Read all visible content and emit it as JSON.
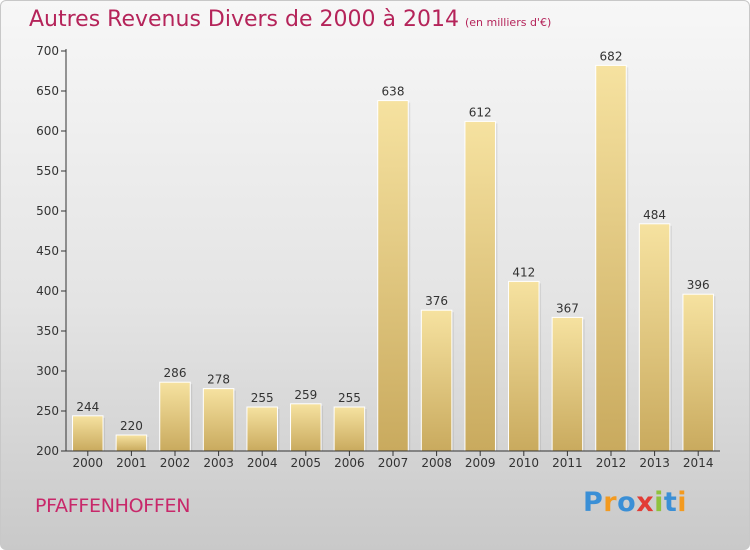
{
  "title": "Autres Revenus Divers de 2000 à 2014",
  "subtitle": "(en milliers d'€)",
  "town": "PFAFFENHOFFEN",
  "logo": {
    "letters": [
      "P",
      "r",
      "o",
      "x",
      "i",
      "t",
      "i"
    ],
    "colors": [
      "#3a8fd6",
      "#f39a1f",
      "#3a8fd6",
      "#e23c35",
      "#8fc23d",
      "#3a8fd6",
      "#f39a1f"
    ]
  },
  "colors": {
    "bar_top": "#f6e2a0",
    "bar_bottom": "#c9aa5e",
    "axis": "#333333",
    "grid": "#dcdcdc",
    "title": "#b5245a"
  },
  "chart_data": {
    "type": "bar",
    "categories": [
      "2000",
      "2001",
      "2002",
      "2003",
      "2004",
      "2005",
      "2006",
      "2007",
      "2008",
      "2009",
      "2010",
      "2011",
      "2012",
      "2013",
      "2014"
    ],
    "values": [
      244,
      220,
      286,
      278,
      255,
      259,
      255,
      638,
      376,
      612,
      412,
      367,
      682,
      484,
      396
    ],
    "data_labels": [
      "244",
      "220",
      "286",
      "278",
      "255",
      "259",
      "255",
      "638",
      "376",
      "612",
      "412",
      "367",
      "682",
      "484",
      "396"
    ],
    "ylim": [
      200,
      700
    ],
    "yticks": [
      "200",
      "250",
      "300",
      "350",
      "400",
      "450",
      "500",
      "550",
      "600",
      "650",
      "700"
    ],
    "title": "Autres Revenus Divers de 2000 à 2014",
    "xlabel": "",
    "ylabel": "",
    "grid": false,
    "legend": "none"
  }
}
